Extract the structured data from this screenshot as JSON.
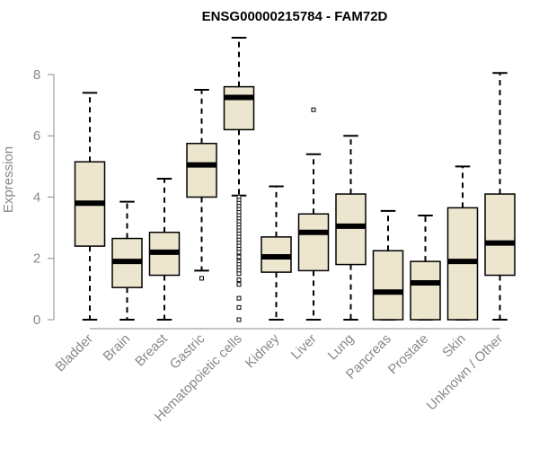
{
  "chart_data": {
    "type": "box",
    "title": "ENSG00000215784 - FAM72D",
    "ylabel": "Expression",
    "xlabel": "",
    "ylim": [
      0,
      9.2
    ],
    "yticks": [
      0,
      2,
      4,
      6,
      8
    ],
    "grid": false,
    "colors": {
      "box_fill": "#ede6cf",
      "box_stroke": "#000000",
      "median": "#000000",
      "axis": "#888888",
      "title": "#000000"
    },
    "categories": [
      "Bladder",
      "Brain",
      "Breast",
      "Gastric",
      "Hematopoietic cells",
      "Kidney",
      "Liver",
      "Lung",
      "Pancreas",
      "Prostate",
      "Skin",
      "Unknown / Other"
    ],
    "boxes": [
      {
        "category": "Bladder",
        "min": 0,
        "q1": 2.4,
        "median": 3.8,
        "q3": 5.15,
        "max": 7.4,
        "outliers": []
      },
      {
        "category": "Brain",
        "min": 0,
        "q1": 1.05,
        "median": 1.9,
        "q3": 2.65,
        "max": 3.85,
        "outliers": []
      },
      {
        "category": "Breast",
        "min": 0,
        "q1": 1.45,
        "median": 2.2,
        "q3": 2.85,
        "max": 4.6,
        "outliers": []
      },
      {
        "category": "Gastric",
        "min": 1.6,
        "q1": 4.0,
        "median": 5.05,
        "q3": 5.75,
        "max": 7.5,
        "outliers": [
          1.35
        ]
      },
      {
        "category": "Hematopoietic cells",
        "min": 4.05,
        "q1": 6.2,
        "median": 7.25,
        "q3": 7.6,
        "max": 9.2,
        "outliers": [
          4.0,
          3.9,
          3.8,
          3.7,
          3.6,
          3.5,
          3.4,
          3.3,
          3.2,
          3.1,
          3.0,
          2.9,
          2.8,
          2.7,
          2.6,
          2.5,
          2.4,
          2.3,
          2.2,
          2.05,
          1.9,
          1.8,
          1.7,
          1.6,
          1.5,
          1.3,
          1.15,
          0.7,
          0.4,
          0.0
        ]
      },
      {
        "category": "Kidney",
        "min": 0,
        "q1": 1.55,
        "median": 2.05,
        "q3": 2.7,
        "max": 4.35,
        "outliers": []
      },
      {
        "category": "Liver",
        "min": 0,
        "q1": 1.6,
        "median": 2.85,
        "q3": 3.45,
        "max": 5.4,
        "outliers": [
          6.85
        ]
      },
      {
        "category": "Lung",
        "min": 0,
        "q1": 1.8,
        "median": 3.05,
        "q3": 4.1,
        "max": 6.0,
        "outliers": []
      },
      {
        "category": "Pancreas",
        "min": 0,
        "q1": 0,
        "median": 0.9,
        "q3": 2.25,
        "max": 3.55,
        "outliers": []
      },
      {
        "category": "Prostate",
        "min": 0,
        "q1": 0,
        "median": 1.2,
        "q3": 1.9,
        "max": 3.4,
        "outliers": []
      },
      {
        "category": "Skin",
        "min": 0,
        "q1": 0,
        "median": 1.9,
        "q3": 3.65,
        "max": 5.0,
        "outliers": []
      },
      {
        "category": "Unknown / Other",
        "min": 0,
        "q1": 1.45,
        "median": 2.5,
        "q3": 4.1,
        "max": 8.05,
        "outliers": []
      }
    ]
  }
}
